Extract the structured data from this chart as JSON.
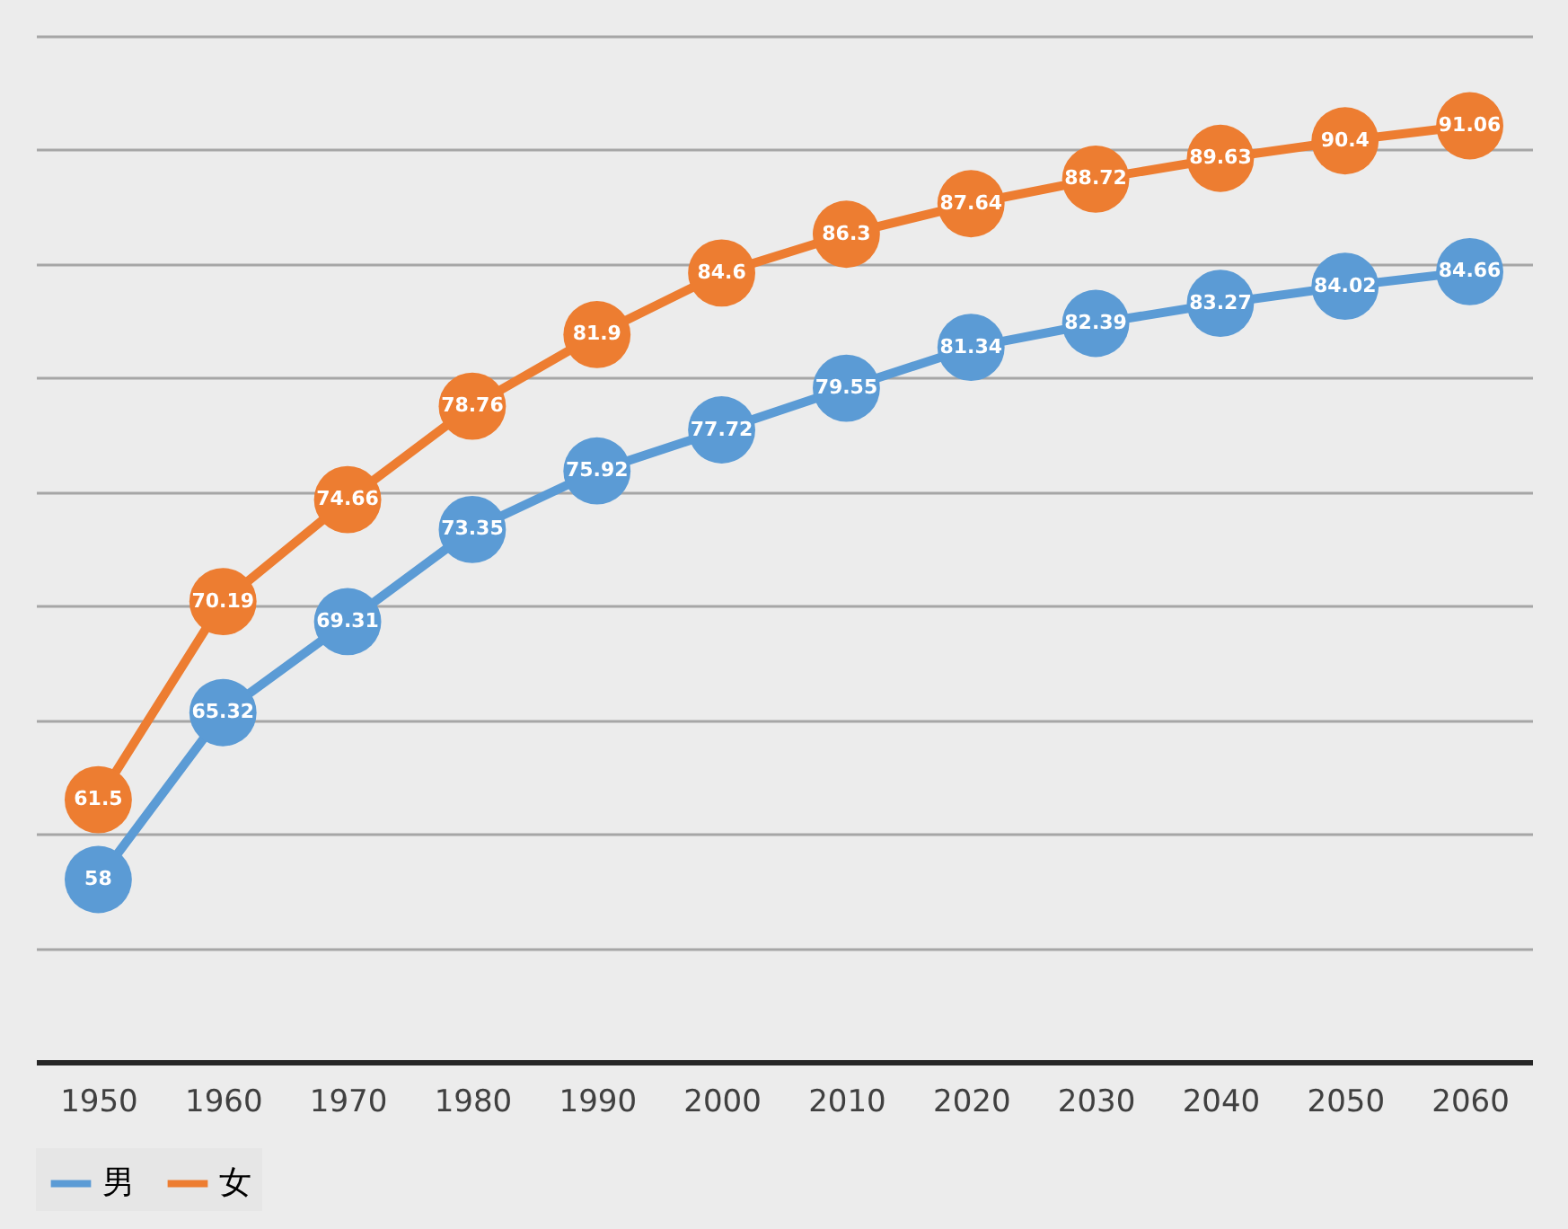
{
  "chart_data": {
    "type": "line",
    "categories": [
      "1950",
      "1960",
      "1970",
      "1980",
      "1990",
      "2000",
      "2010",
      "2020",
      "2030",
      "2040",
      "2050",
      "2060"
    ],
    "series": [
      {
        "name": "男",
        "color": "#5b9bd5",
        "values": [
          58,
          65.32,
          69.31,
          73.35,
          75.92,
          77.72,
          79.55,
          81.34,
          82.39,
          83.27,
          84.02,
          84.66
        ]
      },
      {
        "name": "女",
        "color": "#ed7d31",
        "values": [
          61.5,
          70.19,
          74.66,
          78.76,
          81.9,
          84.6,
          86.3,
          87.64,
          88.72,
          89.63,
          90.4,
          91.06
        ]
      }
    ],
    "ylim": [
      50,
      95
    ],
    "yticks": [
      {
        "value": 50,
        "label": null
      },
      {
        "value": 55,
        "label": null
      },
      {
        "value": 60,
        "label": null
      },
      {
        "value": 65,
        "label": null
      },
      {
        "value": 70,
        "label": null
      },
      {
        "value": 75,
        "label": null
      },
      {
        "value": 80,
        "label": null
      },
      {
        "value": 85,
        "label": null
      },
      {
        "value": 90,
        "label": null
      },
      {
        "value": 95,
        "label": null
      }
    ],
    "tick_labels": "x",
    "grid": "y",
    "legend": "bottom",
    "marker": "circle",
    "line_style": "solid",
    "data_labels": true
  }
}
